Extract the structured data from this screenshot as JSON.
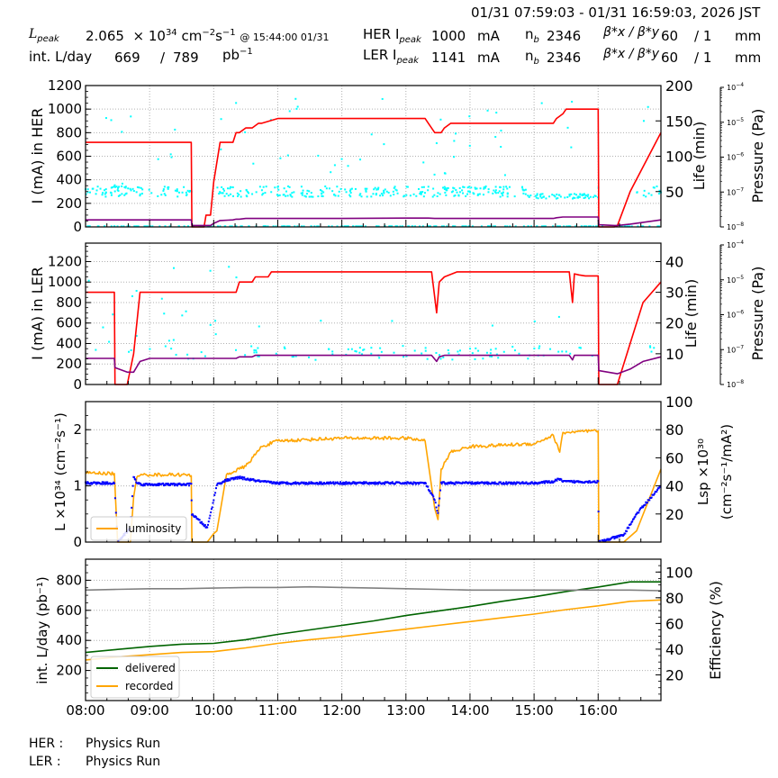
{
  "header": {
    "time_range": "01/31 07:59:03 - 01/31 16:59:03, 2026 JST",
    "lpeak_label": "L",
    "lpeak_sub": "peak",
    "lpeak_value": "2.065",
    "lpeak_unit_prefix": "× 10",
    "lpeak_exp": "34",
    "lpeak_unit": "cm",
    "lpeak_unit_exp1": "−2",
    "lpeak_unit_s": "s",
    "lpeak_unit_exp2": "−1",
    "lpeak_at": "@ 15:44:00 01/31",
    "intl_label": "int. L/day",
    "intl_recorded": "669",
    "intl_sep": "/",
    "intl_delivered": "789",
    "intl_unit": "pb",
    "intl_unit_exp": "−1",
    "her": {
      "label": "HER I",
      "sub": "peak",
      "current": "1000",
      "unit": "mA",
      "nb_label": "n",
      "nb_sub": "b",
      "nb": "2346",
      "beta_label": "β*x / β*y",
      "beta_x": "60",
      "beta_sep": "/ 1",
      "beta_unit": "mm"
    },
    "ler": {
      "label": "LER I",
      "sub": "peak",
      "current": "1141",
      "unit": "mA",
      "nb_label": "n",
      "nb_sub": "b",
      "nb": "2346",
      "beta_label": "β*x / β*y",
      "beta_x": "60",
      "beta_sep": "/ 1",
      "beta_unit": "mm"
    }
  },
  "footer": {
    "her_label": "HER :",
    "her_status": "Physics Run",
    "ler_label": "LER :",
    "ler_status": "Physics Run"
  },
  "colors": {
    "current": "#ff0000",
    "lifetime": "#800080",
    "pressure": "#00ffff",
    "luminosity": "#ffa500",
    "specific_lumi": "#0000ff",
    "delivered": "#006400",
    "recorded": "#ffa500",
    "efficiency": "#808080",
    "grid": "#b0b0b0"
  },
  "chart_data": [
    {
      "type": "line",
      "title": "HER",
      "xlabel": "",
      "ylabel": "I (mA) in HER",
      "ylabel_right": "Life (min)",
      "ylabel_right2": "Pressure (Pa)",
      "ylim": [
        0,
        1200
      ],
      "ylim_right": [
        0,
        200
      ],
      "ylim_right2_log": [
        "10^-8",
        "10^-4"
      ],
      "yticks": [
        0,
        200,
        400,
        600,
        800,
        1000,
        1200
      ],
      "yticks_right": [
        50,
        100,
        150,
        200
      ],
      "yticks_right2": [
        "10−8",
        "10−7",
        "10−6",
        "10−5",
        "10−4"
      ],
      "x": [
        0.0,
        1.65,
        1.66,
        1.85,
        1.88,
        1.95,
        2.0,
        2.1,
        2.3,
        2.35,
        2.4,
        2.5,
        2.6,
        2.7,
        2.75,
        3.0,
        4.0,
        5.0,
        5.3,
        5.35,
        5.45,
        5.55,
        5.6,
        5.7,
        6.0,
        7.0,
        7.3,
        7.35,
        7.45,
        7.5,
        8.0,
        8.01,
        8.25,
        8.3,
        8.5,
        8.98
      ],
      "series": [
        {
          "name": "I HER",
          "axis": "left",
          "color": "#ff0000",
          "values": [
            718,
            718,
            0,
            0,
            100,
            100,
            380,
            718,
            718,
            800,
            800,
            840,
            840,
            880,
            880,
            920,
            920,
            920,
            920,
            880,
            800,
            800,
            840,
            880,
            880,
            880,
            880,
            920,
            960,
            1000,
            1000,
            0,
            0,
            10,
            300,
            800
          ]
        },
        {
          "name": "Life HER",
          "axis": "right",
          "color": "#800080",
          "values": [
            10,
            10,
            2,
            2,
            2,
            2,
            5,
            9,
            10,
            11,
            11,
            12,
            12,
            12,
            12,
            12,
            12,
            12.5,
            12.5,
            12.5,
            12,
            12,
            12,
            12,
            12,
            12,
            12,
            13,
            14,
            14,
            14,
            3,
            2,
            2,
            4,
            10
          ]
        }
      ],
      "scatter": {
        "name": "Pressure HER",
        "color": "#00ffff",
        "baseline_y_left": 310,
        "note": "dense cluster ~250-350 mA-equivalent band with sparse outliers up to ~1100"
      }
    },
    {
      "type": "line",
      "title": "LER",
      "ylabel": "I (mA) in LER",
      "ylabel_right": "Life (min)",
      "ylabel_right2": "Pressure (Pa)",
      "ylim": [
        0,
        1380
      ],
      "ylim_right": [
        0,
        46
      ],
      "yticks": [
        0,
        200,
        400,
        600,
        800,
        1000,
        1200
      ],
      "yticks_right": [
        10,
        20,
        30,
        40
      ],
      "yticks_right2": [
        "10−8",
        "10−7",
        "10−6",
        "10−5",
        "10−4"
      ],
      "x": [
        0.0,
        0.45,
        0.46,
        0.65,
        0.75,
        0.85,
        1.0,
        2.0,
        2.35,
        2.4,
        2.6,
        2.65,
        2.85,
        2.9,
        3.0,
        4.0,
        5.0,
        5.4,
        5.48,
        5.52,
        5.6,
        5.8,
        6.0,
        7.0,
        7.4,
        7.55,
        7.6,
        7.63,
        7.7,
        7.8,
        8.0,
        8.01,
        8.3,
        8.5,
        8.7,
        8.98
      ],
      "series": [
        {
          "name": "I LER",
          "axis": "left",
          "color": "#ff0000",
          "values": [
            900,
            900,
            0,
            0,
            300,
            900,
            900,
            900,
            900,
            1000,
            1000,
            1050,
            1050,
            1100,
            1100,
            1100,
            1100,
            1100,
            700,
            1000,
            1050,
            1100,
            1100,
            1100,
            1100,
            1100,
            800,
            1080,
            1070,
            1060,
            1060,
            0,
            0,
            400,
            800,
            1000
          ]
        },
        {
          "name": "Life LER",
          "axis": "right",
          "color": "#800080",
          "values": [
            8.5,
            8.5,
            5.5,
            4,
            4,
            7.5,
            8.5,
            8.5,
            8.5,
            9,
            9,
            9.5,
            9.5,
            9.5,
            9.5,
            9.5,
            9.5,
            9.5,
            7.5,
            9,
            9.5,
            9.5,
            9.5,
            9.5,
            9.5,
            9.5,
            8,
            9.5,
            9.5,
            9.5,
            9.5,
            4.5,
            3.5,
            5,
            7.5,
            9
          ]
        }
      ],
      "scatter": {
        "name": "Pressure LER",
        "color": "#00ffff",
        "note": "sparse points mostly 200-400 band, some up to ~1200"
      }
    },
    {
      "type": "line",
      "title": "Luminosity",
      "ylabel": "L ×10^34 (cm^-2 s^-1)",
      "ylabel_right": "Lsp ×10^30 (cm^-2 s^-1 / mA^2)",
      "ylim": [
        0,
        2.5
      ],
      "ylim_right": [
        0,
        100
      ],
      "yticks": [
        0,
        1,
        2
      ],
      "yticks_right": [
        20,
        40,
        60,
        80,
        100
      ],
      "legend": [
        {
          "label": "luminosity",
          "color": "#ffa500"
        }
      ],
      "legend_position": "lower left",
      "x": [
        0.0,
        0.45,
        0.5,
        0.7,
        0.75,
        0.8,
        0.9,
        1.0,
        1.5,
        1.65,
        1.66,
        1.9,
        2.0,
        2.05,
        2.2,
        2.4,
        2.5,
        2.75,
        3.0,
        4.0,
        5.0,
        5.3,
        5.45,
        5.5,
        5.55,
        5.7,
        6.0,
        7.0,
        7.3,
        7.4,
        7.45,
        7.5,
        8.0,
        8.01,
        8.4,
        8.6,
        8.98
      ],
      "series": [
        {
          "name": "luminosity",
          "axis": "left",
          "color": "#ffa500",
          "values": [
            1.23,
            1.22,
            0,
            0,
            0.8,
            1.15,
            1.2,
            1.2,
            1.2,
            1.18,
            0,
            0,
            0.15,
            0.2,
            1.2,
            1.3,
            1.35,
            1.7,
            1.8,
            1.85,
            1.85,
            1.8,
            0.6,
            0.4,
            1.3,
            1.6,
            1.7,
            1.75,
            1.9,
            1.6,
            1.95,
            1.95,
            1.98,
            0,
            0,
            0.2,
            1.3
          ]
        },
        {
          "name": "specific luminosity",
          "axis": "right",
          "color": "#0000ff",
          "style": "dots",
          "values": [
            42,
            42,
            0,
            10,
            47,
            42,
            41,
            41,
            41,
            41,
            20,
            10,
            30,
            41,
            44,
            46,
            45,
            43,
            42,
            42,
            42,
            42,
            30,
            20,
            42,
            42,
            42,
            42,
            43,
            45,
            43,
            43,
            43,
            0,
            5,
            20,
            40
          ]
        }
      ]
    },
    {
      "type": "line",
      "title": "Integrated luminosity",
      "ylabel": "int. L/day (pb^-1)",
      "ylabel_right": "Efficiency (%)",
      "ylim": [
        0,
        940
      ],
      "ylim_right": [
        0,
        110
      ],
      "yticks": [
        200,
        400,
        600,
        800
      ],
      "yticks_right": [
        20,
        40,
        60,
        80,
        100
      ],
      "legend": [
        {
          "label": "delivered",
          "color": "#006400"
        },
        {
          "label": "recorded",
          "color": "#ffa500"
        }
      ],
      "legend_position": "lower left",
      "x": [
        0.0,
        0.5,
        1.0,
        1.5,
        2.0,
        2.5,
        3.0,
        3.5,
        4.0,
        4.5,
        5.0,
        5.5,
        6.0,
        6.5,
        7.0,
        7.5,
        8.0,
        8.5,
        8.98
      ],
      "series": [
        {
          "name": "delivered",
          "axis": "left",
          "color": "#006400",
          "values": [
            320,
            340,
            360,
            375,
            380,
            405,
            440,
            470,
            500,
            530,
            565,
            595,
            625,
            660,
            690,
            725,
            755,
            789,
            789
          ]
        },
        {
          "name": "recorded",
          "axis": "left",
          "color": "#ffa500",
          "values": [
            270,
            290,
            305,
            320,
            325,
            350,
            380,
            405,
            425,
            450,
            475,
            500,
            525,
            550,
            575,
            605,
            630,
            660,
            669
          ]
        },
        {
          "name": "efficiency",
          "axis": "right",
          "color": "#808080",
          "values": [
            86,
            86.5,
            87,
            87,
            87.5,
            88,
            88,
            88.5,
            88,
            87.5,
            87,
            86.5,
            86,
            86,
            86,
            86,
            86,
            86,
            85.5
          ]
        }
      ]
    }
  ],
  "xaxis": {
    "ticks": [
      "08:00",
      "09:00",
      "10:00",
      "11:00",
      "12:00",
      "13:00",
      "14:00",
      "15:00",
      "16:00"
    ],
    "range_hours": [
      8.0,
      16.98
    ]
  },
  "labels": {
    "p1_left": "I (mA) in HER",
    "p1_right": "Life (min)",
    "p1_right2": "Pressure (Pa)",
    "p2_left": "I (mA) in LER",
    "p2_right": "Life (min)",
    "p2_right2": "Pressure (Pa)",
    "p3_left": "L ×10³⁴ (cm⁻²s⁻¹)",
    "p3_right_a": "Lsp ×10³⁰",
    "p3_right_b": "(cm⁻²s⁻¹/mA²)",
    "p4_left": "int. L/day (pb⁻¹)",
    "p4_right": "Efficiency (%)",
    "legend_lumi": "luminosity",
    "legend_delivered": "delivered",
    "legend_recorded": "recorded"
  }
}
